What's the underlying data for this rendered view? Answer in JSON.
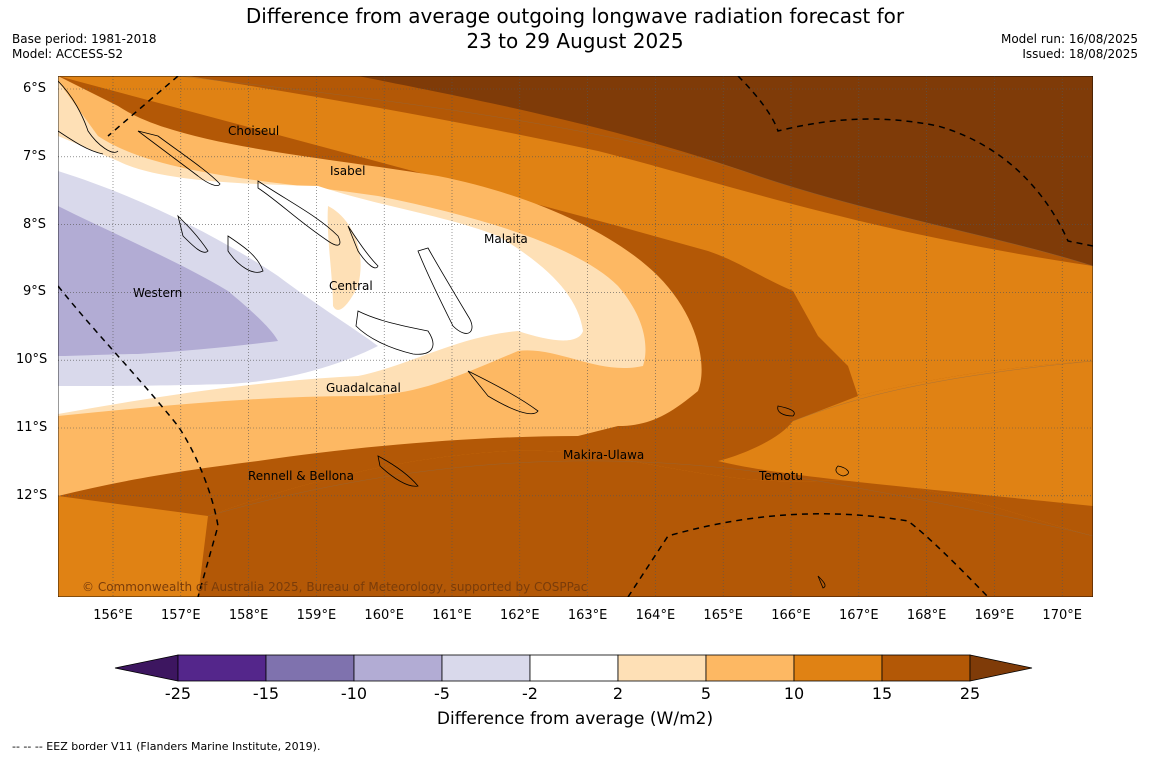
{
  "title_line1": "Difference from average outgoing longwave radiation forecast for",
  "title_line2": "23 to 29 August 2025",
  "meta_left": [
    "Base period: 1981-2018",
    "Model: ACCESS-S2"
  ],
  "meta_right": [
    "Model run: 16/08/2025",
    "Issued: 18/08/2025"
  ],
  "copyright": "© Commonwealth of Australia 2025, Bureau of Meteorology, supported by COSPPac",
  "lat_labels": [
    "6°S",
    "7°S",
    "8°S",
    "9°S",
    "10°S",
    "11°S",
    "12°S"
  ],
  "lon_labels": [
    "156°E",
    "157°E",
    "158°E",
    "159°E",
    "160°E",
    "161°E",
    "162°E",
    "163°E",
    "164°E",
    "165°E",
    "166°E",
    "167°E",
    "168°E",
    "169°E",
    "170°E"
  ],
  "regions": [
    "Choiseul",
    "Isabel",
    "Malaita",
    "Western",
    "Central",
    "Guadalcanal",
    "Rennell & Bellona",
    "Makira-Ulawa",
    "Temotu"
  ],
  "colorbar": {
    "ticks": [
      "-25",
      "-15",
      "-10",
      "-5",
      "-2",
      "2",
      "5",
      "10",
      "15",
      "25"
    ],
    "colors": [
      "#3d1660",
      "#54268b",
      "#7f72ae",
      "#b2acd4",
      "#d9d9eb",
      "#ffffff",
      "#fee0b6",
      "#fdb863",
      "#e08214",
      "#b35806",
      "#7f3b08"
    ],
    "label": "Difference from average (W/m2)"
  },
  "footnote": "--  --  -- EEZ border V11 (Flanders Marine Institute, 2019)."
}
